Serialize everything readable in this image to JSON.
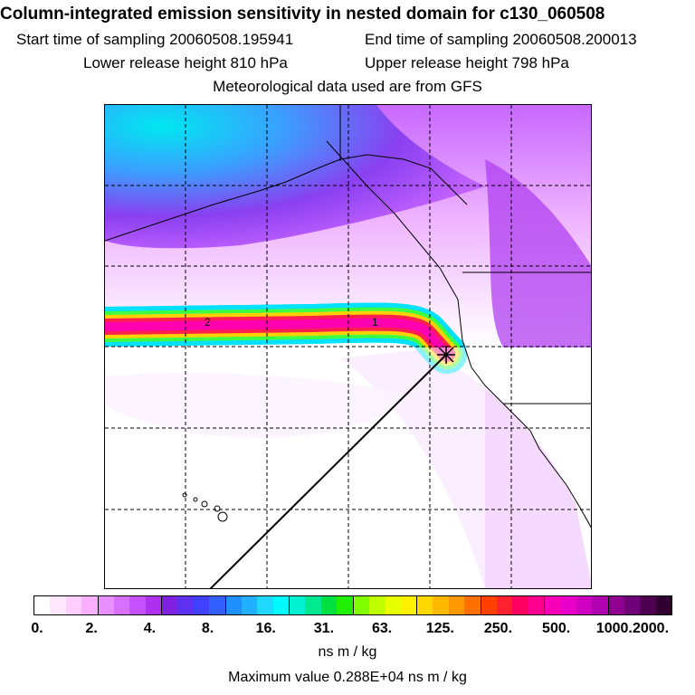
{
  "header": {
    "title": "Column-integrated emission sensitivity in nested domain for c130_060508",
    "start_time": "Start time of sampling 20060508.195941",
    "end_time": "End time of sampling 20060508.200013",
    "lower_height": "Lower release height  810 hPa",
    "upper_height": "Upper release height  798 hPa",
    "met_data": "Meteorological data used are from GFS"
  },
  "map": {
    "trajectory_labels": [
      "2",
      "1"
    ],
    "plume_colors": [
      "#ff00b0",
      "#ff2050",
      "#ffd000",
      "#40ff40",
      "#00e0ff"
    ]
  },
  "colorbar": {
    "ticks": [
      "0.",
      "2.",
      "4.",
      "8.",
      "16.",
      "31.",
      "63.",
      "125.",
      "250.",
      "500.",
      "1000.",
      "2000."
    ],
    "colors": [
      "#ffffff",
      "#ffe8ff",
      "#ffd0ff",
      "#f8b0ff",
      "#e890ff",
      "#d870ff",
      "#c450ff",
      "#b030f0",
      "#8020e0",
      "#6030f0",
      "#4040ff",
      "#3060ff",
      "#2090ff",
      "#20b0ff",
      "#20d8ff",
      "#00f8ff",
      "#00f0d0",
      "#00e890",
      "#00e040",
      "#20f000",
      "#80ff00",
      "#c0ff00",
      "#e8ff00",
      "#fff000",
      "#ffd800",
      "#ffb800",
      "#ff9800",
      "#ff7000",
      "#ff4000",
      "#ff2030",
      "#ff0060",
      "#ff0090",
      "#f800b8",
      "#e800c8",
      "#d000c0",
      "#b000b0",
      "#900090",
      "#700078",
      "#500050",
      "#300030"
    ],
    "units": "ns m / kg",
    "maximum": "Maximum value  0.288E+04 ns m / kg"
  }
}
